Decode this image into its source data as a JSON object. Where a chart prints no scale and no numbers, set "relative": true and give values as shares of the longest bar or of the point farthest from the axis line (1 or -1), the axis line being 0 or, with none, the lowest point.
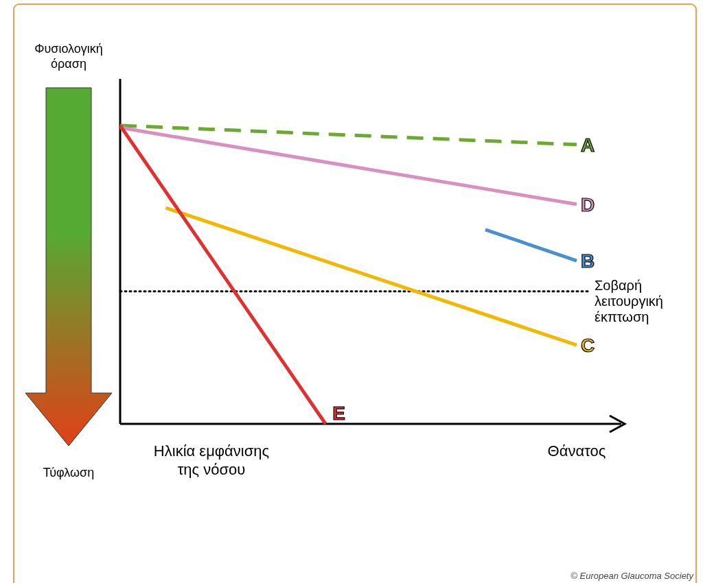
{
  "chart_data": {
    "type": "line",
    "relative": true,
    "categories": [
      null,
      null,
      null,
      null,
      "Ηλικία εμφάνισης της νόσου",
      null,
      null,
      null,
      null,
      null,
      null,
      null,
      null,
      null,
      null,
      null,
      null,
      null,
      null,
      null,
      "Θάνατος"
    ],
    "series": [
      {
        "name": "A",
        "color": "#6aaa2e",
        "line_style": "dashed",
        "values": [
          1.0,
          null,
          null,
          null,
          null,
          null,
          null,
          null,
          null,
          null,
          null,
          null,
          null,
          null,
          null,
          null,
          null,
          null,
          null,
          null,
          0.936
        ]
      },
      {
        "name": "D",
        "color": "#d98fc0",
        "values": [
          0.993,
          null,
          null,
          null,
          null,
          null,
          null,
          null,
          null,
          null,
          null,
          null,
          null,
          null,
          null,
          null,
          null,
          null,
          null,
          null,
          0.736
        ]
      },
      {
        "name": "B",
        "color": "#4a8fd0",
        "values": [
          null,
          null,
          null,
          null,
          null,
          null,
          null,
          null,
          null,
          null,
          null,
          null,
          null,
          null,
          null,
          null,
          0.651,
          null,
          null,
          null,
          0.547
        ]
      },
      {
        "name": "C",
        "color": "#f2b800",
        "values": [
          null,
          null,
          0.724,
          null,
          null,
          null,
          null,
          null,
          null,
          null,
          null,
          null,
          null,
          null,
          null,
          null,
          null,
          null,
          null,
          null,
          0.264
        ]
      },
      {
        "name": "E",
        "color": "#e03030",
        "values": [
          1.0,
          null,
          null,
          null,
          null,
          null,
          null,
          null,
          null,
          0,
          null,
          null,
          null,
          null,
          null,
          null,
          null,
          null,
          null,
          null,
          null
        ]
      }
    ],
    "ref_lines": [
      {
        "axis": "y",
        "value": 0.444,
        "label": "Σοβαρή λειτουργική έκπτωση",
        "line_style": "dotted",
        "color": "#000000"
      }
    ],
    "annotations": [
      "Φυσιολογική όραση",
      "Τύφλωση",
      "© European Glaucoma Society"
    ],
    "legend": false
  }
}
